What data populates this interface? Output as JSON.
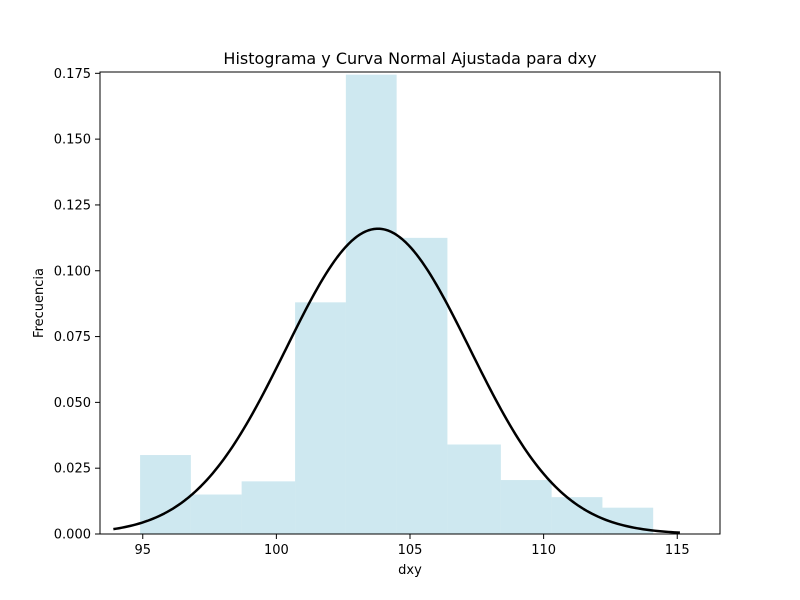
{
  "chart_data": {
    "type": "bar",
    "title": "Histograma y Curva Normal Ajustada para dxy",
    "xlabel": "dxy",
    "ylabel": "Frecuencia",
    "xlim": [
      93.4,
      116.6
    ],
    "ylim": [
      0,
      0.1755
    ],
    "x_ticks": [
      95,
      100,
      105,
      110,
      115
    ],
    "x_tick_labels": [
      "95",
      "100",
      "105",
      "110",
      "115"
    ],
    "y_ticks": [
      0.0,
      0.025,
      0.05,
      0.075,
      0.1,
      0.125,
      0.15,
      0.175
    ],
    "y_tick_labels": [
      "0.000",
      "0.025",
      "0.050",
      "0.075",
      "0.100",
      "0.125",
      "0.150",
      "0.175"
    ],
    "grid": false,
    "series": [
      {
        "type": "histogram",
        "color": "#add8e6",
        "bins": [
          {
            "x0": 94.9,
            "x1": 96.8,
            "value": 0.03
          },
          {
            "x0": 96.8,
            "x1": 98.7,
            "value": 0.015
          },
          {
            "x0": 98.7,
            "x1": 100.7,
            "value": 0.02
          },
          {
            "x0": 100.7,
            "x1": 102.6,
            "value": 0.088
          },
          {
            "x0": 102.6,
            "x1": 104.5,
            "value": 0.1745
          },
          {
            "x0": 104.5,
            "x1": 106.4,
            "value": 0.1125
          },
          {
            "x0": 106.4,
            "x1": 108.4,
            "value": 0.034
          },
          {
            "x0": 108.4,
            "x1": 110.3,
            "value": 0.0205
          },
          {
            "x0": 110.3,
            "x1": 112.2,
            "value": 0.014
          },
          {
            "x0": 112.2,
            "x1": 114.1,
            "value": 0.01
          }
        ]
      },
      {
        "type": "line",
        "color": "#000000",
        "mean": 103.8,
        "std": 3.44,
        "x_range": [
          93.9,
          115.1
        ]
      }
    ]
  }
}
